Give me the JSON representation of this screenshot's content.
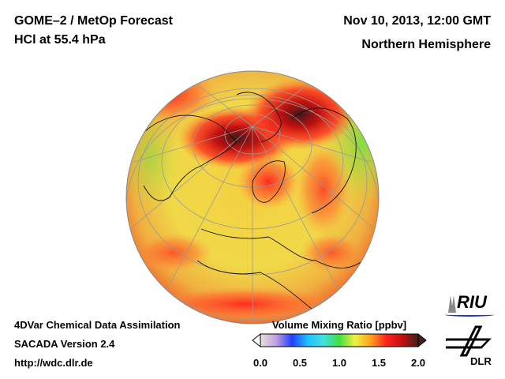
{
  "header": {
    "title": "GOME–2 / MetOp Forecast",
    "subtitle": "HCl at 55.4 hPa",
    "datetime": "Nov 10, 2013, 12:00 GMT",
    "region": "Northern Hemisphere"
  },
  "footer": {
    "line1": "4DVar Chemical Data Assimilation",
    "line2": "SACADA Version 2.4",
    "url": "http://wdc.dlr.de"
  },
  "colorbar": {
    "label": "Volume Mixing Ratio [ppbv]",
    "ticks": [
      "0.0",
      "0.5",
      "1.0",
      "1.5",
      "2.0"
    ],
    "min": 0.0,
    "max": 2.0,
    "colors": [
      "#e8e0e0",
      "#c0a0e0",
      "#2040ff",
      "#20c0ff",
      "#40e0e0",
      "#40e040",
      "#f0f040",
      "#ffa020",
      "#ff2020",
      "#c01010",
      "#402020"
    ]
  },
  "logos": {
    "riu": "RIU",
    "dlr": "DLR"
  }
}
